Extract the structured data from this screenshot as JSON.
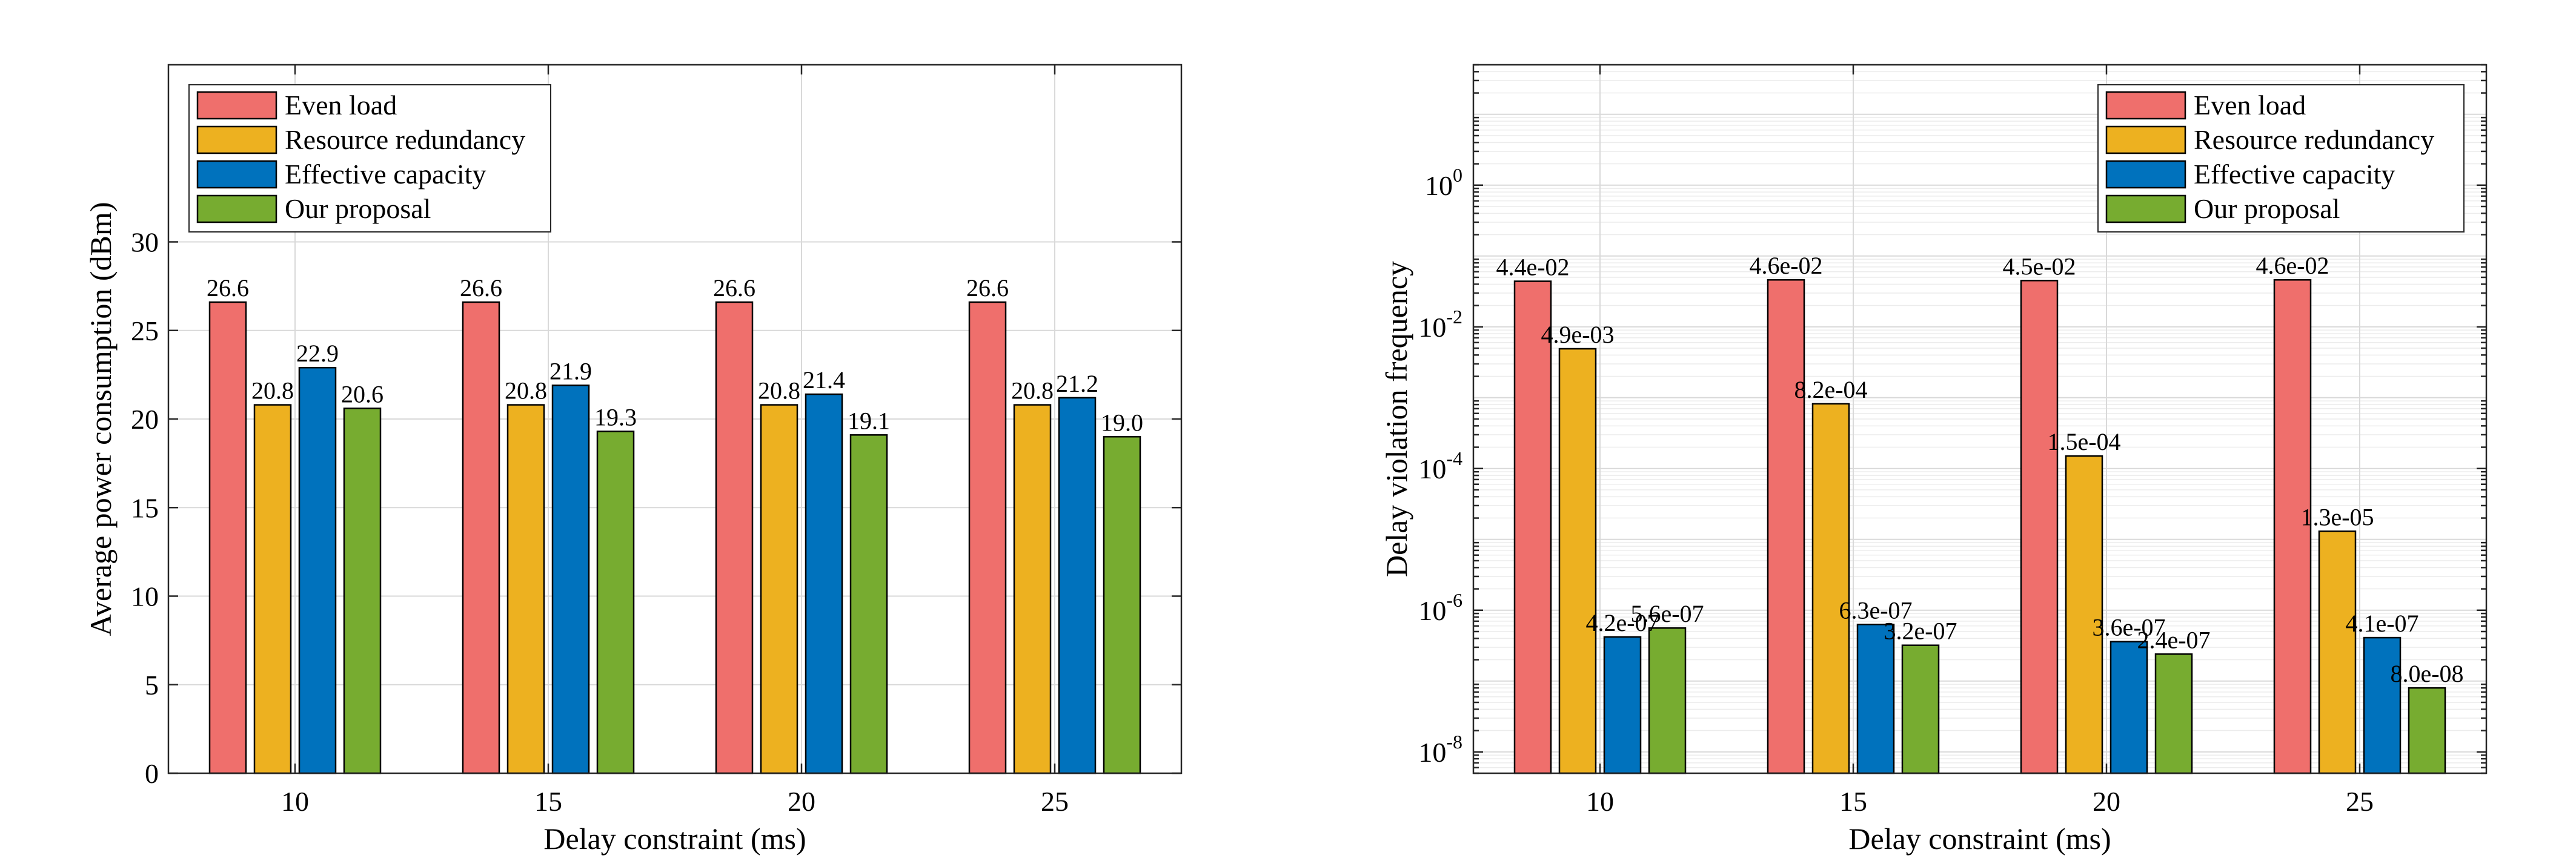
{
  "chart_data": [
    {
      "type": "bar",
      "title": "",
      "xlabel": "Delay constraint (ms)",
      "ylabel": "Average power consumption (dBm)",
      "categories": [
        "10",
        "15",
        "20",
        "25"
      ],
      "yscale": "linear",
      "ylim": [
        0,
        40
      ],
      "yticks": [
        0,
        5,
        10,
        15,
        20,
        25,
        30
      ],
      "ytick_labels": [
        "0",
        "5",
        "10",
        "15",
        "20",
        "25",
        "30"
      ],
      "grid": true,
      "legend_position": "top-left",
      "series": [
        {
          "name": "Even load",
          "color": "#EF6F6C",
          "values": [
            26.6,
            26.6,
            26.6,
            26.6
          ],
          "labels": [
            "26.6",
            "26.6",
            "26.6",
            "26.6"
          ]
        },
        {
          "name": "Resource redundancy",
          "color": "#EDB120",
          "values": [
            20.8,
            20.8,
            20.8,
            20.8
          ],
          "labels": [
            "20.8",
            "20.8",
            "20.8",
            "20.8"
          ]
        },
        {
          "name": "Effective capacity",
          "color": "#0072BD",
          "values": [
            22.9,
            21.9,
            21.4,
            21.2
          ],
          "labels": [
            "22.9",
            "21.9",
            "21.4",
            "21.2"
          ]
        },
        {
          "name": "Our proposal",
          "color": "#77AC30",
          "values": [
            20.6,
            19.3,
            19.1,
            19.0
          ],
          "labels": [
            "20.6",
            "19.3",
            "19.1",
            "19.0"
          ]
        }
      ]
    },
    {
      "type": "bar",
      "title": "",
      "xlabel": "Delay constraint (ms)",
      "ylabel": "Delay violation frequency",
      "categories": [
        "10",
        "15",
        "20",
        "25"
      ],
      "yscale": "log",
      "ylim": [
        5e-09,
        50
      ],
      "yticks": [
        1e-08,
        1e-06,
        0.0001,
        0.01,
        1
      ],
      "ytick_labels": [
        {
          "base": "10",
          "exp": "-8"
        },
        {
          "base": "10",
          "exp": "-6"
        },
        {
          "base": "10",
          "exp": "-4"
        },
        {
          "base": "10",
          "exp": "-2"
        },
        {
          "base": "10",
          "exp": "0"
        }
      ],
      "grid": true,
      "legend_position": "top-right",
      "series": [
        {
          "name": "Even load",
          "color": "#EF6F6C",
          "values": [
            0.044,
            0.046,
            0.045,
            0.046
          ],
          "labels": [
            "4.4e-02",
            "4.6e-02",
            "4.5e-02",
            "4.6e-02"
          ]
        },
        {
          "name": "Resource redundancy",
          "color": "#EDB120",
          "values": [
            0.0049,
            0.00082,
            0.00015,
            1.3e-05
          ],
          "labels": [
            "4.9e-03",
            "8.2e-04",
            "1.5e-04",
            "1.3e-05"
          ]
        },
        {
          "name": "Effective capacity",
          "color": "#0072BD",
          "values": [
            4.2e-07,
            6.3e-07,
            3.6e-07,
            4.1e-07
          ],
          "labels": [
            "4.2e-07",
            "6.3e-07",
            "3.6e-07",
            "4.1e-07"
          ]
        },
        {
          "name": "Our proposal",
          "color": "#77AC30",
          "values": [
            5.6e-07,
            3.2e-07,
            2.4e-07,
            8e-08
          ],
          "labels": [
            "5.6e-07",
            "3.2e-07",
            "2.4e-07",
            "8.0e-08"
          ]
        }
      ]
    }
  ]
}
